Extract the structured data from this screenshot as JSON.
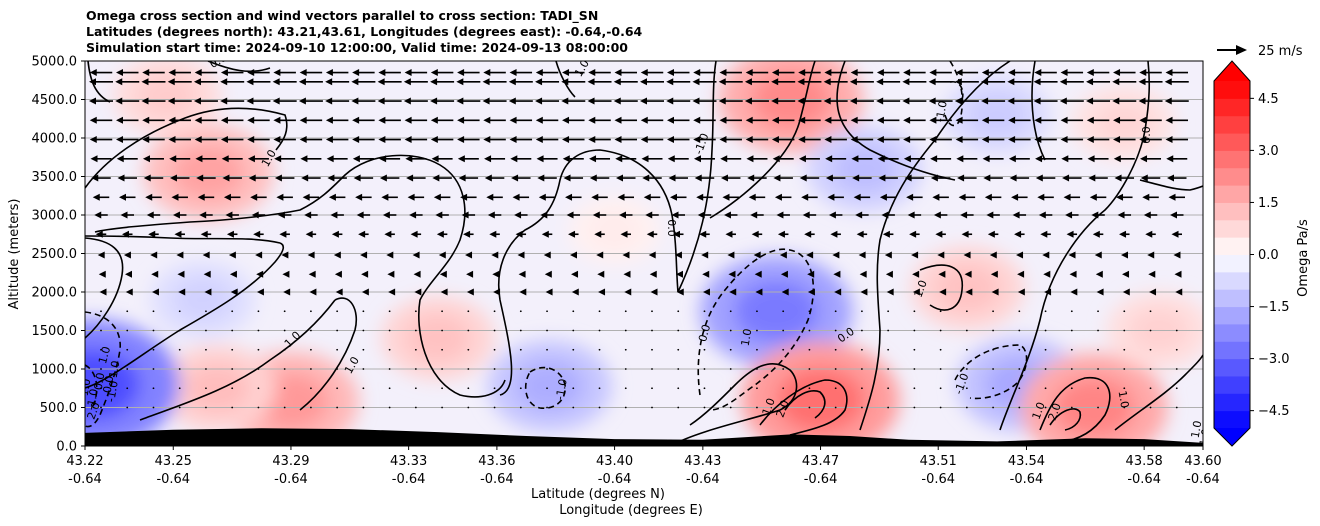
{
  "title_lines": [
    "Omega cross section and wind vectors parallel to cross section: TADI_SN",
    "Latitudes (degrees north): 43.21,43.61, Longitudes (degrees east): -0.64,-0.64",
    "Simulation start time: 2024-09-10 12:00:00, Valid time: 2024-09-13 08:00:00"
  ],
  "chart_data": {
    "type": "heatmap",
    "ylabel": "Altitude (meters)",
    "xlabel_line1": "Latitude (degrees N)",
    "xlabel_line2": "Longitude (degrees E)",
    "ylim": [
      0,
      5000
    ],
    "y_ticks": [
      "0.0",
      "500.0",
      "1000.0",
      "1500.0",
      "2000.0",
      "2500.0",
      "3000.0",
      "3500.0",
      "4000.0",
      "4500.0",
      "5000.0"
    ],
    "x_ticks": [
      {
        "lat": "43.22",
        "lon": "-0.64"
      },
      {
        "lat": "43.25",
        "lon": "-0.64"
      },
      {
        "lat": "43.29",
        "lon": "-0.64"
      },
      {
        "lat": "43.33",
        "lon": "-0.64"
      },
      {
        "lat": "43.36",
        "lon": "-0.64"
      },
      {
        "lat": "43.40",
        "lon": "-0.64"
      },
      {
        "lat": "43.43",
        "lon": "-0.64"
      },
      {
        "lat": "43.47",
        "lon": "-0.64"
      },
      {
        "lat": "43.51",
        "lon": "-0.64"
      },
      {
        "lat": "43.54",
        "lon": "-0.64"
      },
      {
        "lat": "43.58",
        "lon": "-0.64"
      },
      {
        "lat": "43.60",
        "lon": "-0.64"
      }
    ],
    "grid": "horizontal",
    "colorbar": {
      "label": "Omega Pa/s",
      "ticks": [
        "−4.5",
        "−3.0",
        "−1.5",
        "0.0",
        "1.5",
        "3.0",
        "4.5"
      ],
      "range": [
        -5,
        5
      ],
      "extend": "both",
      "cmap": "bwr"
    },
    "quiver_key": "25 m/s",
    "contour_labels": [
      "0.0",
      "1.0",
      "1.0",
      "1.0",
      "1.0",
      "0.0",
      "1.0",
      "-1.0",
      "0.0",
      "1.0",
      "-1.0",
      "-1.0",
      "0.0",
      "1.0",
      "2.0",
      "1.0",
      "-1.0",
      "1.0",
      "2.0",
      "1.0",
      "0.0",
      "-1.0",
      "1.0",
      "1.0",
      "2.0",
      "1.0",
      "-1.0",
      "0.0",
      "0.0",
      "-1.0"
    ],
    "omega_features": [
      {
        "lat": 43.262,
        "alt": 3550,
        "value": 1.8
      },
      {
        "lat": 43.248,
        "alt": 4550,
        "value": 1.0
      },
      {
        "lat": 43.29,
        "alt": 580,
        "value": 2.0
      },
      {
        "lat": 43.265,
        "alt": 750,
        "value": 1.3
      },
      {
        "lat": 43.34,
        "alt": 1400,
        "value": 1.2
      },
      {
        "lat": 43.222,
        "alt": 800,
        "value": -3.5
      },
      {
        "lat": 43.26,
        "alt": 1900,
        "value": -0.9
      },
      {
        "lat": 43.378,
        "alt": 780,
        "value": -1.6
      },
      {
        "lat": 43.455,
        "alt": 1750,
        "value": -2.6
      },
      {
        "lat": 43.46,
        "alt": 4500,
        "value": 2.3
      },
      {
        "lat": 43.47,
        "alt": 600,
        "value": 2.8
      },
      {
        "lat": 43.52,
        "alt": 2050,
        "value": 1.2
      },
      {
        "lat": 43.485,
        "alt": 3600,
        "value": -1.3
      },
      {
        "lat": 43.53,
        "alt": 4300,
        "value": -1.0
      },
      {
        "lat": 43.538,
        "alt": 800,
        "value": -1.7
      },
      {
        "lat": 43.563,
        "alt": 500,
        "value": 2.4
      },
      {
        "lat": 43.573,
        "alt": 4200,
        "value": 0.8
      },
      {
        "lat": 43.4,
        "alt": 2800,
        "value": 0.4
      },
      {
        "lat": 43.585,
        "alt": 1500,
        "value": 0.9
      }
    ],
    "wind_rows": [
      {
        "alt": 4850,
        "u": -0.75
      },
      {
        "alt": 4730,
        "u": -0.8
      },
      {
        "alt": 4480,
        "u": -0.8
      },
      {
        "alt": 4230,
        "u": -0.75
      },
      {
        "alt": 3980,
        "u": -0.75
      },
      {
        "alt": 3730,
        "u": -0.7
      },
      {
        "alt": 3480,
        "u": -0.65
      },
      {
        "alt": 3230,
        "u": -0.55
      },
      {
        "alt": 3000,
        "u": -0.45
      },
      {
        "alt": 2750,
        "u": -0.35
      },
      {
        "alt": 2480,
        "u": -0.22
      },
      {
        "alt": 2230,
        "u": -0.15
      },
      {
        "alt": 2000,
        "u": -0.1
      },
      {
        "alt": 1750,
        "u": -0.08
      },
      {
        "alt": 1500,
        "u": -0.06
      },
      {
        "alt": 1250,
        "u": -0.04
      },
      {
        "alt": 1000,
        "u": -0.03
      },
      {
        "alt": 750,
        "u": -0.02
      },
      {
        "alt": 500,
        "u": -0.02
      }
    ],
    "terrain": [
      {
        "lat": 43.22,
        "alt": 170
      },
      {
        "lat": 43.25,
        "alt": 210
      },
      {
        "lat": 43.28,
        "alt": 230
      },
      {
        "lat": 43.31,
        "alt": 220
      },
      {
        "lat": 43.34,
        "alt": 180
      },
      {
        "lat": 43.37,
        "alt": 130
      },
      {
        "lat": 43.4,
        "alt": 90
      },
      {
        "lat": 43.43,
        "alt": 80
      },
      {
        "lat": 43.46,
        "alt": 150
      },
      {
        "lat": 43.48,
        "alt": 130
      },
      {
        "lat": 43.5,
        "alt": 80
      },
      {
        "lat": 43.53,
        "alt": 60
      },
      {
        "lat": 43.56,
        "alt": 100
      },
      {
        "lat": 43.58,
        "alt": 90
      },
      {
        "lat": 43.6,
        "alt": 40
      }
    ]
  }
}
